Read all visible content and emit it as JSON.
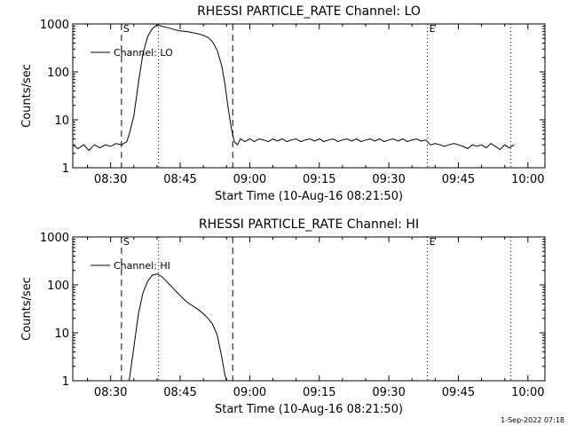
{
  "footer": {
    "timestamp": "1-Sep-2022 07:18"
  },
  "styles": {
    "line_color": "#000000",
    "background": "#ffffff"
  },
  "chart_data": [
    {
      "type": "line",
      "title": "RHESSI PARTICLE_RATE Channel: LO",
      "xlabel": "Start Time (10-Aug-16 08:21:50)",
      "ylabel": "Counts/sec",
      "y_scale": "log",
      "ylim": [
        1,
        1000
      ],
      "xlim": [
        "08:21:50",
        "10:03:40"
      ],
      "x_ticks": [
        "08:30",
        "08:45",
        "09:00",
        "09:15",
        "09:30",
        "09:45",
        "10:00"
      ],
      "y_ticks": [
        "1",
        "10",
        "100",
        "1000"
      ],
      "legend": {
        "entries": [
          "Channel: LO"
        ],
        "placement": "top-left"
      },
      "markers": [
        {
          "time": "08:32:20",
          "style": "dashed",
          "label": "S"
        },
        {
          "time": "08:40:20",
          "style": "dotted",
          "label": ""
        },
        {
          "time": "08:56:20",
          "style": "dashed",
          "label": ""
        },
        {
          "time": "09:38:20",
          "style": "dotted",
          "label": "E"
        },
        {
          "time": "09:56:20",
          "style": "dotted",
          "label": ""
        }
      ],
      "series": [
        {
          "name": "Channel: LO",
          "x": [
            "08:21:50",
            "08:23:00",
            "08:24:10",
            "08:25:20",
            "08:26:30",
            "08:27:40",
            "08:28:50",
            "08:30:00",
            "08:31:10",
            "08:32:20",
            "08:33:30",
            "08:34:00",
            "08:35:00",
            "08:36:00",
            "08:37:00",
            "08:38:00",
            "08:39:00",
            "08:40:00",
            "08:41:00",
            "08:42:00",
            "08:43:00",
            "08:44:00",
            "08:45:00",
            "08:46:00",
            "08:47:00",
            "08:48:00",
            "08:49:00",
            "08:50:00",
            "08:51:00",
            "08:52:00",
            "08:53:00",
            "08:54:00",
            "08:54:40",
            "08:55:20",
            "08:56:00",
            "08:56:40",
            "08:57:20",
            "08:58:00",
            "08:59:00",
            "09:00:00",
            "09:01:00",
            "09:02:00",
            "09:03:00",
            "09:04:00",
            "09:05:00",
            "09:06:00",
            "09:07:00",
            "09:08:00",
            "09:09:00",
            "09:10:00",
            "09:11:00",
            "09:12:00",
            "09:13:00",
            "09:14:00",
            "09:15:00",
            "09:16:00",
            "09:17:00",
            "09:18:00",
            "09:19:00",
            "09:20:00",
            "09:21:00",
            "09:22:00",
            "09:23:00",
            "09:24:00",
            "09:25:00",
            "09:26:00",
            "09:27:00",
            "09:28:00",
            "09:29:00",
            "09:30:00",
            "09:31:00",
            "09:32:00",
            "09:33:00",
            "09:34:00",
            "09:35:00",
            "09:36:00",
            "09:37:00",
            "09:38:00",
            "09:39:00",
            "09:40:00",
            "09:41:00",
            "09:42:00",
            "09:43:00",
            "09:44:00",
            "09:45:00",
            "09:46:00",
            "09:47:00",
            "09:48:00",
            "09:49:00",
            "09:50:00",
            "09:51:00",
            "09:52:00",
            "09:53:00",
            "09:54:00",
            "09:55:00",
            "09:56:00",
            "09:57:00"
          ],
          "values": [
            3,
            2.5,
            3,
            2.3,
            3,
            2.6,
            3,
            2.8,
            3.2,
            3,
            3.5,
            5,
            12,
            60,
            250,
            550,
            800,
            950,
            900,
            850,
            800,
            750,
            720,
            700,
            680,
            650,
            620,
            580,
            520,
            420,
            280,
            130,
            55,
            18,
            7,
            3.5,
            3,
            4,
            3.5,
            4,
            3.5,
            4,
            3.8,
            3.5,
            4,
            3.6,
            4,
            3.5,
            3.8,
            4,
            3.5,
            3.8,
            4,
            3.6,
            4,
            3.5,
            3.8,
            4,
            3.5,
            3.8,
            4,
            3.6,
            4,
            3.5,
            3.8,
            4,
            3.6,
            4,
            3.5,
            3.8,
            4,
            3.6,
            4,
            3.5,
            3.8,
            4,
            3.6,
            3.8,
            3,
            3.2,
            3,
            2.8,
            3,
            3.2,
            3,
            2.8,
            2.5,
            3,
            2.8,
            3,
            2.6,
            3.2,
            2.8,
            2.4,
            3,
            2.6,
            3
          ]
        }
      ]
    },
    {
      "type": "line",
      "title": "RHESSI PARTICLE_RATE Channel: HI",
      "xlabel": "Start Time (10-Aug-16 08:21:50)",
      "ylabel": "Counts/sec",
      "y_scale": "log",
      "ylim": [
        1,
        1000
      ],
      "xlim": [
        "08:21:50",
        "10:03:40"
      ],
      "x_ticks": [
        "08:30",
        "08:45",
        "09:00",
        "09:15",
        "09:30",
        "09:45",
        "10:00"
      ],
      "y_ticks": [
        "1",
        "10",
        "100",
        "1000"
      ],
      "legend": {
        "entries": [
          "Channel: HI"
        ],
        "placement": "top-left"
      },
      "markers": [
        {
          "time": "08:32:20",
          "style": "dashed",
          "label": "S"
        },
        {
          "time": "08:40:20",
          "style": "dotted",
          "label": ""
        },
        {
          "time": "08:56:20",
          "style": "dashed",
          "label": ""
        },
        {
          "time": "09:38:20",
          "style": "dotted",
          "label": "E"
        },
        {
          "time": "09:56:20",
          "style": "dotted",
          "label": ""
        }
      ],
      "series": [
        {
          "name": "Channel: HI",
          "x": [
            "08:34:00",
            "08:35:00",
            "08:36:00",
            "08:37:00",
            "08:38:00",
            "08:39:00",
            "08:40:00",
            "08:41:00",
            "08:42:00",
            "08:43:00",
            "08:44:00",
            "08:45:00",
            "08:46:00",
            "08:47:00",
            "08:48:00",
            "08:49:00",
            "08:50:00",
            "08:51:00",
            "08:52:00",
            "08:53:00",
            "08:54:00",
            "08:54:40",
            "08:55:00"
          ],
          "values": [
            1,
            5,
            25,
            70,
            120,
            160,
            170,
            150,
            120,
            95,
            75,
            60,
            48,
            40,
            35,
            30,
            25,
            20,
            15,
            9,
            3,
            1.3,
            1
          ]
        }
      ]
    }
  ]
}
